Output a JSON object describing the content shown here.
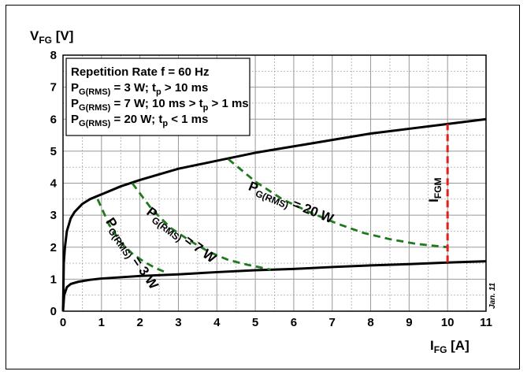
{
  "chart_data": {
    "type": "line",
    "xlim": [
      0,
      11
    ],
    "ylim": [
      0,
      8
    ],
    "x_ticks": [
      "0",
      "1",
      "2",
      "3",
      "4",
      "5",
      "6",
      "7",
      "8",
      "9",
      "10",
      "11"
    ],
    "y_ticks": [
      "0",
      "1",
      "2",
      "3",
      "4",
      "5",
      "6",
      "7",
      "8"
    ],
    "grid": true,
    "ylabel": {
      "main": "V",
      "sub": "FG",
      "unit": " [V]"
    },
    "xlabel": {
      "main": "I",
      "sub": "FG",
      "unit": " [A]"
    },
    "legend": {
      "placement": "top-left",
      "lines": [
        {
          "pre": "Repetition Rate f = 60 Hz",
          "sub": "",
          "post": "",
          "sub2": "",
          "post2": ""
        },
        {
          "pre": "P",
          "sub": "G(RMS)",
          "post": " = 3 W; t",
          "sub2": "p",
          "post2": " > 10 ms"
        },
        {
          "pre": "P",
          "sub": "G(RMS)",
          "post": " = 7 W; 10 ms > t",
          "sub2": "p",
          "post2": " > 1 ms"
        },
        {
          "pre": "P",
          "sub": "G(RMS)",
          "post": " = 20 W; t",
          "sub2": "p",
          "post2": " < 1 ms"
        }
      ]
    },
    "series": [
      {
        "style": "solid",
        "color": "#000000",
        "x": [
          0,
          0.02,
          0.05,
          0.1,
          0.2,
          0.3,
          0.5,
          0.7,
          1,
          1.5,
          2,
          3,
          4,
          5,
          6,
          7,
          8,
          9,
          10,
          11
        ],
        "y": [
          0,
          1.5,
          2.0,
          2.5,
          2.9,
          3.1,
          3.35,
          3.5,
          3.65,
          3.9,
          4.1,
          4.45,
          4.7,
          4.95,
          5.15,
          5.35,
          5.55,
          5.7,
          5.85,
          6.0
        ]
      },
      {
        "style": "solid",
        "color": "#000000",
        "x": [
          0,
          0.03,
          0.1,
          0.2,
          0.4,
          0.7,
          1,
          2,
          3,
          4,
          5,
          6,
          7,
          8,
          9,
          10,
          11
        ],
        "y": [
          0,
          0.5,
          0.75,
          0.85,
          0.92,
          0.98,
          1.02,
          1.1,
          1.15,
          1.22,
          1.28,
          1.32,
          1.38,
          1.43,
          1.47,
          1.52,
          1.56
        ]
      },
      {
        "style": "dashed",
        "color": "#1f7a1f",
        "x": [
          0.9,
          1.2,
          1.5,
          1.8,
          2.1,
          2.4,
          2.7
        ],
        "y": [
          3.5,
          2.7,
          2.15,
          1.8,
          1.55,
          1.35,
          1.2
        ]
      },
      {
        "style": "dashed",
        "color": "#1f7a1f",
        "x": [
          1.8,
          2.3,
          2.8,
          3.3,
          3.8,
          4.3,
          4.8,
          5.4
        ],
        "y": [
          4.0,
          3.2,
          2.6,
          2.2,
          1.85,
          1.6,
          1.45,
          1.3
        ]
      },
      {
        "style": "dashed",
        "color": "#1f7a1f",
        "x": [
          4.3,
          5,
          5.7,
          6.4,
          7.1,
          7.8,
          8.5,
          9.2,
          10
        ],
        "y": [
          4.75,
          4.05,
          3.5,
          3.1,
          2.75,
          2.45,
          2.25,
          2.1,
          2.0
        ]
      },
      {
        "style": "dashed",
        "color": "#e32020",
        "x": [
          10,
          10
        ],
        "y": [
          1.52,
          5.85
        ]
      }
    ],
    "annotations": [
      {
        "pre": "P",
        "sub": "G(RMS)",
        "post": " = 3 W",
        "x": 1.1,
        "y": 2.8,
        "angle": 56
      },
      {
        "pre": "P",
        "sub": "G(RMS)",
        "post": " = 7 W",
        "x": 2.15,
        "y": 3.05,
        "angle": 37
      },
      {
        "pre": "P",
        "sub": "G(RMS)",
        "post": " = 20 W",
        "x": 4.8,
        "y": 3.8,
        "angle": 22
      },
      {
        "pre": "I",
        "sub": "FGM",
        "post": "",
        "x": 9.75,
        "y": 3.4,
        "angle": -90
      }
    ],
    "stamp": "Jan. 11"
  }
}
